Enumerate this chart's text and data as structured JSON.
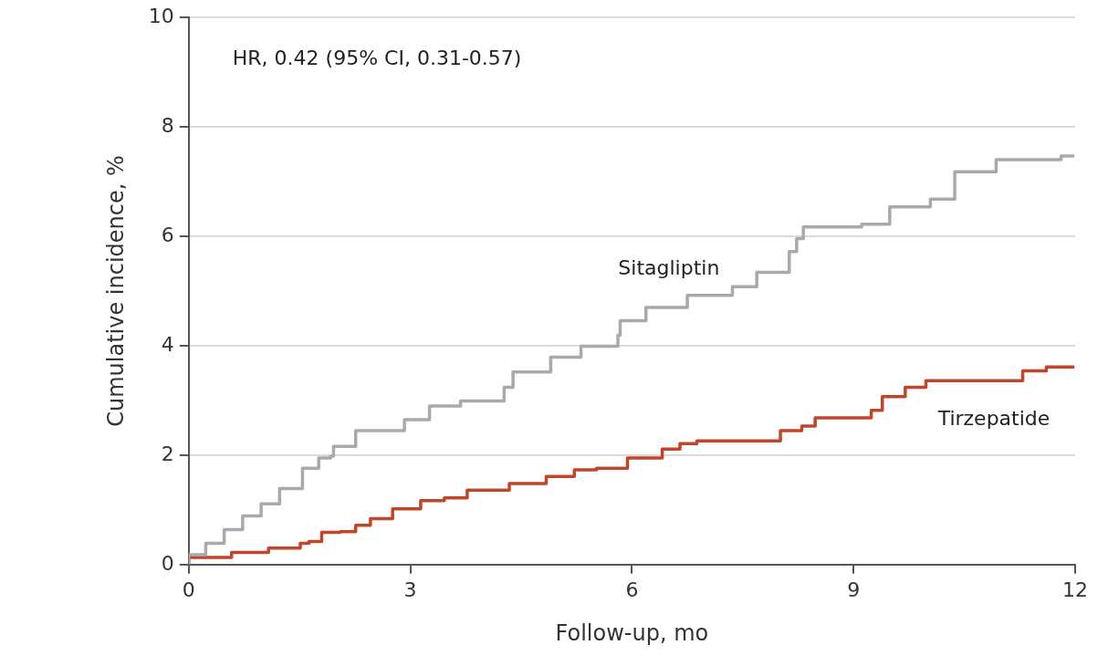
{
  "chart_data": {
    "type": "step",
    "xlabel": "Follow-up, mo",
    "ylabel": "Cumulative incidence, %",
    "annotations": [
      "HR, 0.42 (95% CI, 0.31-0.57)"
    ],
    "xlim": [
      0,
      12
    ],
    "xticks": [
      0,
      3,
      6,
      9,
      12
    ],
    "ylim": [
      0,
      10
    ],
    "yticks": [
      0,
      2,
      4,
      6,
      8,
      10
    ],
    "grid": "y",
    "legend": false,
    "series": [
      {
        "name": "Sitagliptin",
        "color": "#a7a9ac",
        "x": [
          0,
          0.23,
          0.48,
          0.73,
          0.98,
          1.23,
          1.54,
          1.76,
          1.92,
          1.96,
          2.26,
          2.92,
          3.26,
          3.68,
          4.27,
          4.39,
          4.9,
          5.31,
          5.81,
          5.84,
          6.19,
          6.75,
          7.36,
          7.69,
          8.13,
          8.23,
          8.32,
          9.11,
          9.49,
          10.04,
          10.37,
          10.93,
          11.81,
          11.99
        ],
        "values": [
          0,
          0.18,
          0.39,
          0.64,
          0.89,
          1.11,
          1.39,
          1.76,
          1.95,
          1.98,
          2.16,
          2.45,
          2.65,
          2.9,
          2.99,
          3.24,
          3.52,
          3.79,
          3.99,
          4.19,
          4.46,
          4.7,
          4.92,
          5.08,
          5.34,
          5.72,
          5.96,
          6.17,
          6.22,
          6.54,
          6.68,
          7.18,
          7.4,
          7.47
        ]
      },
      {
        "name": "Tirzepatide",
        "color": "#c0462a",
        "x": [
          0,
          0.58,
          1.08,
          1.51,
          1.63,
          1.8,
          2.05,
          2.26,
          2.46,
          2.76,
          3.14,
          3.46,
          3.77,
          4.34,
          4.84,
          5.22,
          5.52,
          5.94,
          6.41,
          6.65,
          6.88,
          8.01,
          8.3,
          8.48,
          9.24,
          9.39,
          9.7,
          9.98,
          11.29,
          11.61,
          11.8,
          11.99
        ],
        "values": [
          0,
          0.13,
          0.22,
          0.3,
          0.39,
          0.42,
          0.59,
          0.6,
          0.72,
          0.84,
          1.02,
          1.17,
          1.22,
          1.36,
          1.48,
          1.61,
          1.73,
          1.76,
          1.95,
          2.11,
          2.21,
          2.26,
          2.45,
          2.53,
          2.68,
          2.82,
          3.07,
          3.24,
          3.36,
          3.54,
          3.61,
          3.61
        ]
      }
    ]
  }
}
